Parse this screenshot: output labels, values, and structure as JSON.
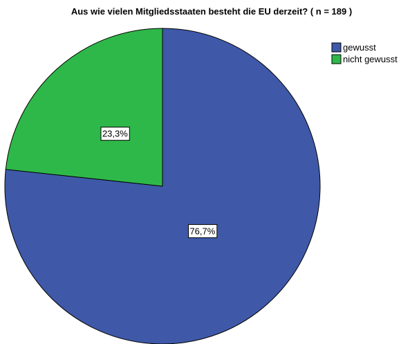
{
  "chart_data": {
    "type": "pie",
    "title": "Aus wie vielen Mitgliedsstaaten besteht die EU derzeit? ( n = 189 )",
    "categories": [
      "gewusst",
      "nicht gewusst"
    ],
    "values": [
      76.7,
      23.3
    ],
    "data_labels": [
      "76,7%",
      "23,3%"
    ],
    "colors": [
      "#3f59a8",
      "#2fb84a"
    ],
    "start_angle_deg": 0,
    "direction": "clockwise",
    "legend_position": "top-right"
  }
}
